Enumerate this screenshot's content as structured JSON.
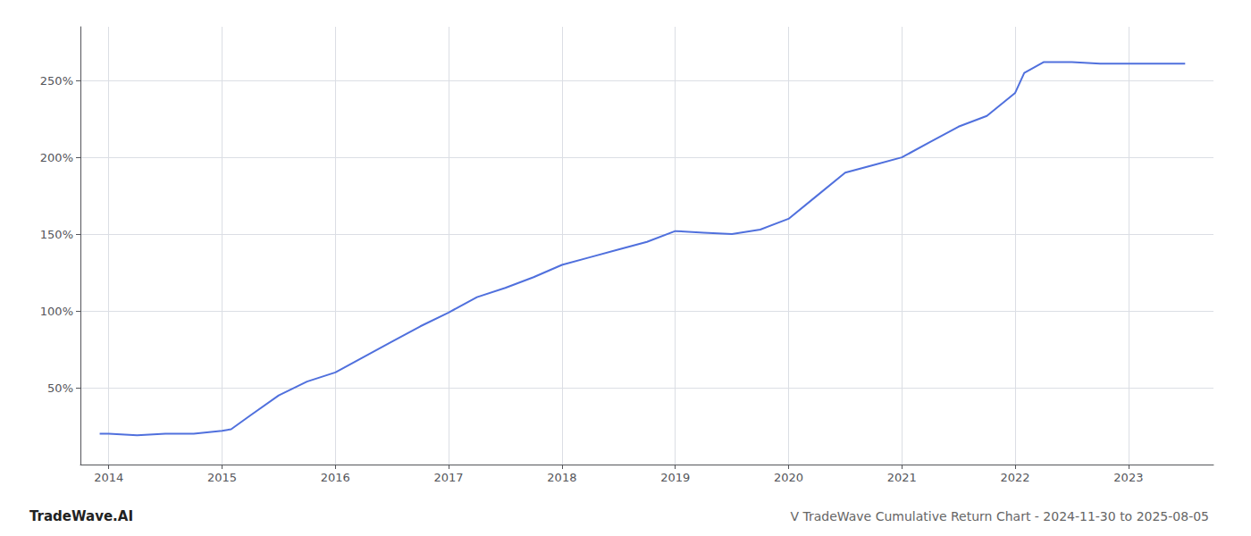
{
  "chart_data": {
    "type": "line",
    "title": "V TradeWave Cumulative Return Chart - 2024-11-30 to 2025-08-05",
    "annotations": [
      "TradeWave.AI"
    ],
    "x": [
      2013.92,
      2014.0,
      2014.25,
      2014.5,
      2014.75,
      2015.0,
      2015.08,
      2015.25,
      2015.5,
      2015.75,
      2016.0,
      2016.25,
      2016.5,
      2016.75,
      2017.0,
      2017.25,
      2017.5,
      2017.75,
      2018.0,
      2018.25,
      2018.5,
      2018.75,
      2019.0,
      2019.25,
      2019.5,
      2019.75,
      2020.0,
      2020.25,
      2020.5,
      2020.75,
      2021.0,
      2021.25,
      2021.5,
      2021.75,
      2022.0,
      2022.08,
      2022.25,
      2022.5,
      2022.75,
      2023.0,
      2023.5
    ],
    "values": [
      20,
      20,
      19,
      20,
      20,
      22,
      23,
      32,
      45,
      54,
      60,
      70,
      80,
      90,
      99,
      109,
      115,
      122,
      130,
      135,
      140,
      145,
      152,
      151,
      150,
      153,
      160,
      175,
      190,
      195,
      200,
      210,
      220,
      227,
      242,
      255,
      262,
      262,
      261,
      261,
      261
    ],
    "xlim": [
      2013.75,
      2023.75
    ],
    "xticks": [
      2014,
      2015,
      2016,
      2017,
      2018,
      2019,
      2020,
      2021,
      2022,
      2023
    ],
    "ylim": [
      0,
      285
    ],
    "yticks": [
      {
        "value": 50,
        "label": "50%"
      },
      {
        "value": 100,
        "label": "100%"
      },
      {
        "value": 150,
        "label": "150%"
      },
      {
        "value": 200,
        "label": "200%"
      },
      {
        "value": 250,
        "label": "250%"
      }
    ],
    "grid": true
  }
}
